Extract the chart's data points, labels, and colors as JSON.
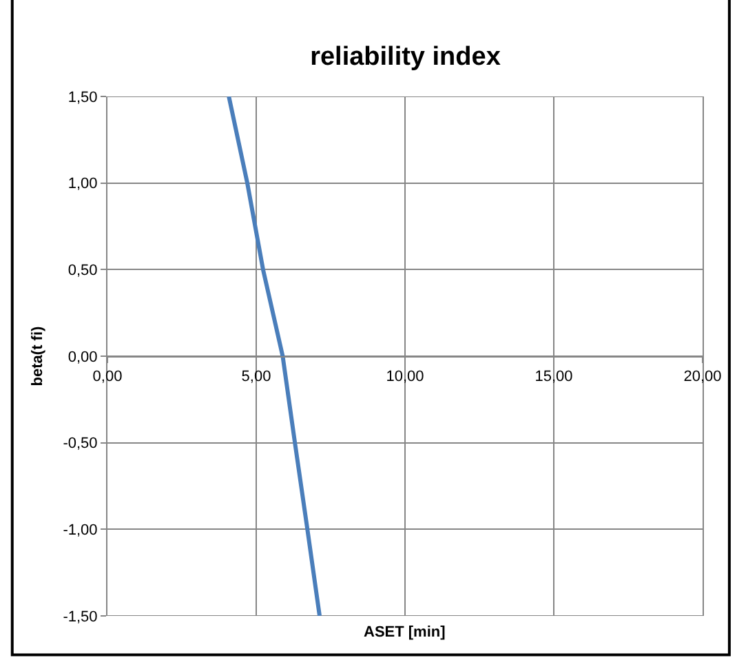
{
  "chart_data": {
    "type": "line",
    "title": "reliability index",
    "xlabel": "ASET [min]",
    "ylabel": "beta(t fi)",
    "x": [
      4.08,
      4.7,
      5.23,
      5.89,
      6.3,
      6.72,
      7.13
    ],
    "series": [
      {
        "color": "#4a7ebb",
        "values": [
          1.5,
          1.0,
          0.5,
          0.0,
          -0.5,
          -1.0,
          -1.5
        ]
      }
    ],
    "xlim": [
      0,
      20
    ],
    "ylim": [
      -1.5,
      1.5
    ],
    "xticks": [
      {
        "value": 0,
        "label": "0,00"
      },
      {
        "value": 5,
        "label": "5,00"
      },
      {
        "value": 10,
        "label": "10,00"
      },
      {
        "value": 15,
        "label": "15,00"
      },
      {
        "value": 20,
        "label": "20,00"
      }
    ],
    "yticks": [
      {
        "value": -1.5,
        "label": "-1,50"
      },
      {
        "value": -1.0,
        "label": "-1,00"
      },
      {
        "value": -0.5,
        "label": "-0,50"
      },
      {
        "value": 0.0,
        "label": "0,00"
      },
      {
        "value": 0.5,
        "label": "0,50"
      },
      {
        "value": 1.0,
        "label": "1,00"
      },
      {
        "value": 1.5,
        "label": "1,50"
      }
    ],
    "grid": true,
    "marker": "none",
    "line_style": "solid"
  }
}
